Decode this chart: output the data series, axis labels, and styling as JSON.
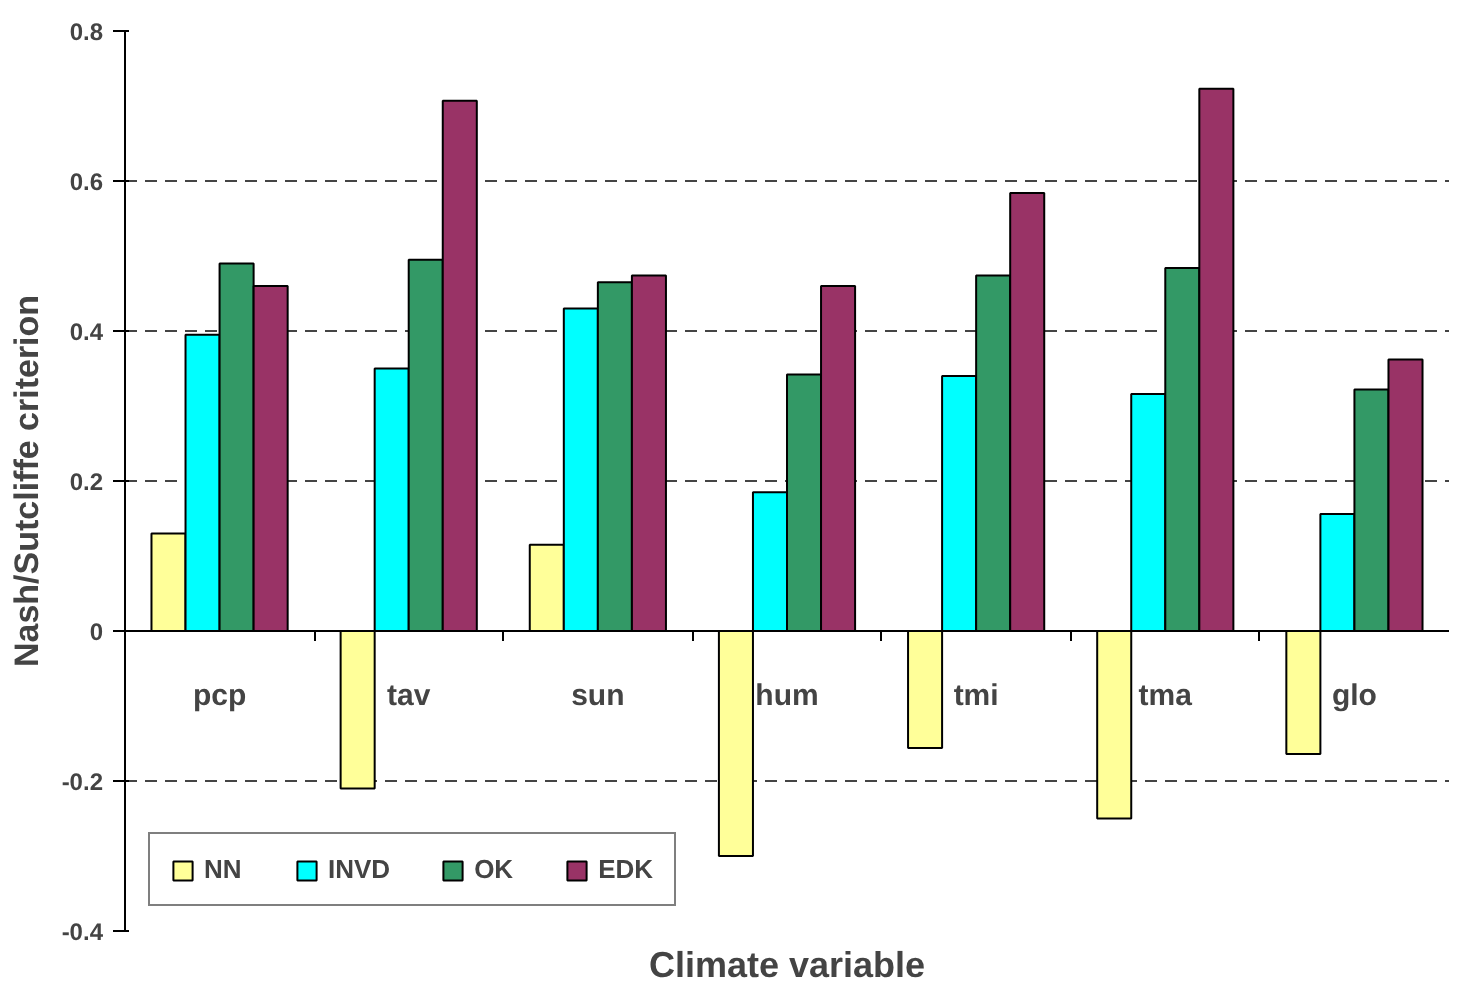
{
  "chart_data": {
    "type": "bar",
    "xlabel": "Climate variable",
    "ylabel": "Nash/Sutcliffe criterion",
    "categories": [
      "pcp",
      "tav",
      "sun",
      "hum",
      "tmi",
      "tma",
      "glo"
    ],
    "series": [
      {
        "name": "NN",
        "color": "#ffff99",
        "values": [
          0.13,
          -0.21,
          0.115,
          -0.3,
          -0.156,
          -0.25,
          -0.164
        ]
      },
      {
        "name": "INVD",
        "color": "#00ffff",
        "values": [
          0.395,
          0.35,
          0.43,
          0.185,
          0.34,
          0.316,
          0.156
        ]
      },
      {
        "name": "OK",
        "color": "#339966",
        "values": [
          0.49,
          0.495,
          0.465,
          0.342,
          0.474,
          0.484,
          0.322
        ]
      },
      {
        "name": "EDK",
        "color": "#993366",
        "values": [
          0.46,
          0.707,
          0.474,
          0.46,
          0.584,
          0.723,
          0.362
        ]
      }
    ],
    "ylim": [
      -0.4,
      0.8
    ],
    "yticks": [
      -0.4,
      -0.2,
      0,
      0.2,
      0.4,
      0.6,
      0.8
    ],
    "grid": "y",
    "legend": "bottom left"
  }
}
